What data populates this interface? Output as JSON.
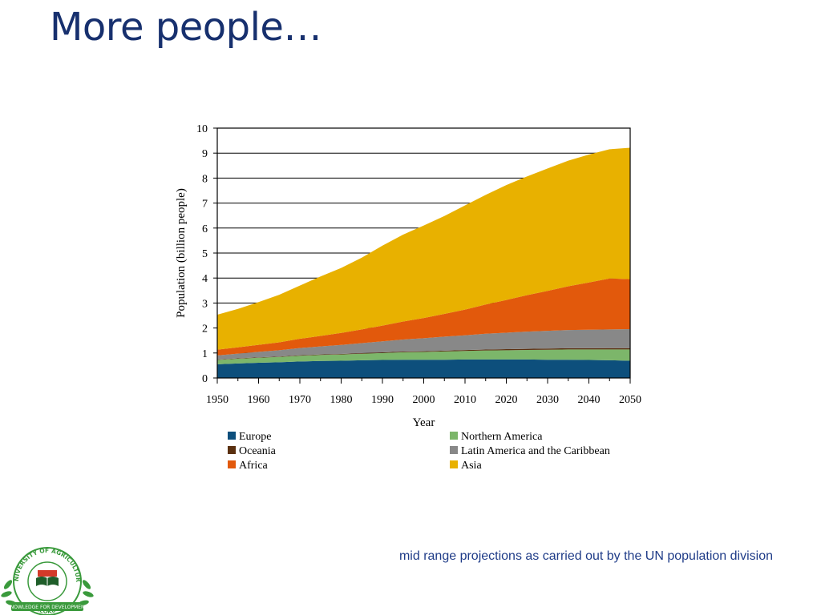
{
  "slide": {
    "title": "More people…",
    "caption": "mid range projections as carried out by the UN population division"
  },
  "logo": {
    "ring_text_top": "UNIVERSITY OF AGRICULTURE",
    "ring_text_bottom": "ABEOKUTA",
    "banner_text": "KNOWLEDGE FOR DEVELOPMENT",
    "colors": {
      "green": "#3a9a3c",
      "red": "#d43a2a",
      "dark": "#1f5e2a"
    }
  },
  "chart_data": {
    "type": "area",
    "stacked": true,
    "xlabel": "Year",
    "ylabel": "Population (billion people)",
    "xlim": [
      1950,
      2050
    ],
    "ylim": [
      0,
      10
    ],
    "xticks": [
      1950,
      1960,
      1970,
      1980,
      1990,
      2000,
      2010,
      2020,
      2030,
      2040,
      2050
    ],
    "yticks": [
      0,
      1,
      2,
      3,
      4,
      5,
      6,
      7,
      8,
      9,
      10
    ],
    "grid": "horizontal",
    "legend_position": "bottom",
    "x": [
      1950,
      1955,
      1960,
      1965,
      1970,
      1975,
      1980,
      1985,
      1990,
      1995,
      2000,
      2005,
      2010,
      2015,
      2020,
      2025,
      2030,
      2035,
      2040,
      2045,
      2050
    ],
    "series": [
      {
        "name": "Europe",
        "color": "#0d4f7c",
        "values": [
          0.55,
          0.58,
          0.61,
          0.63,
          0.66,
          0.68,
          0.69,
          0.71,
          0.72,
          0.73,
          0.73,
          0.73,
          0.74,
          0.74,
          0.74,
          0.74,
          0.73,
          0.73,
          0.72,
          0.71,
          0.69
        ]
      },
      {
        "name": "Northern America",
        "color": "#7cb66a",
        "values": [
          0.17,
          0.19,
          0.2,
          0.21,
          0.23,
          0.24,
          0.25,
          0.26,
          0.28,
          0.3,
          0.31,
          0.33,
          0.34,
          0.36,
          0.37,
          0.38,
          0.4,
          0.41,
          0.42,
          0.43,
          0.45
        ]
      },
      {
        "name": "Oceania",
        "color": "#5a3010",
        "values": [
          0.013,
          0.014,
          0.016,
          0.018,
          0.019,
          0.021,
          0.023,
          0.025,
          0.027,
          0.029,
          0.031,
          0.033,
          0.037,
          0.039,
          0.042,
          0.044,
          0.047,
          0.049,
          0.051,
          0.053,
          0.055
        ]
      },
      {
        "name": "Latin America and the Caribbean",
        "color": "#888888",
        "values": [
          0.17,
          0.19,
          0.22,
          0.25,
          0.29,
          0.32,
          0.36,
          0.4,
          0.44,
          0.48,
          0.52,
          0.56,
          0.59,
          0.63,
          0.66,
          0.69,
          0.71,
          0.73,
          0.74,
          0.75,
          0.76
        ]
      },
      {
        "name": "Africa",
        "color": "#e2590c",
        "values": [
          0.23,
          0.25,
          0.28,
          0.32,
          0.37,
          0.42,
          0.48,
          0.55,
          0.63,
          0.72,
          0.81,
          0.91,
          1.03,
          1.17,
          1.31,
          1.46,
          1.6,
          1.75,
          1.89,
          2.04,
          2.0
        ]
      },
      {
        "name": "Asia",
        "color": "#e8b100",
        "values": [
          1.4,
          1.54,
          1.71,
          1.9,
          2.13,
          2.38,
          2.6,
          2.87,
          3.2,
          3.48,
          3.7,
          3.92,
          4.17,
          4.39,
          4.6,
          4.75,
          4.9,
          5.03,
          5.12,
          5.17,
          5.26
        ]
      }
    ]
  }
}
